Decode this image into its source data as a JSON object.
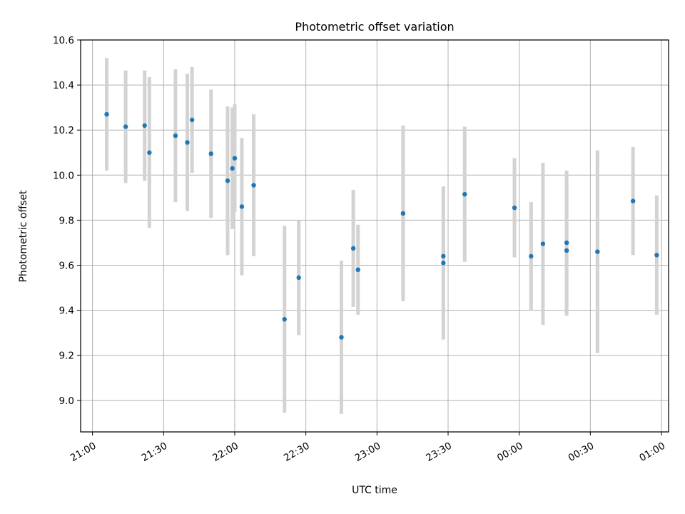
{
  "chart_data": {
    "type": "scatter",
    "title": "Photometric offset variation",
    "xlabel": "UTC time",
    "ylabel": "Photometric offset",
    "xlim": [
      "20:55",
      "01:03"
    ],
    "ylim": [
      8.86,
      10.6
    ],
    "grid": true,
    "x_ticks": [
      "21:00",
      "21:30",
      "22:00",
      "22:30",
      "23:00",
      "23:30",
      "00:00",
      "00:30",
      "01:00"
    ],
    "y_ticks": [
      "9.0",
      "9.2",
      "9.4",
      "9.6",
      "9.8",
      "10.0",
      "10.2",
      "10.4",
      "10.6"
    ],
    "colors": {
      "point": "#1f77b4",
      "errorbar": "#d3d3d3",
      "grid": "#b0b0b0"
    },
    "points": [
      {
        "x": "21:06",
        "y": 10.27,
        "yerr": 0.25
      },
      {
        "x": "21:14",
        "y": 10.215,
        "yerr": 0.25
      },
      {
        "x": "21:22",
        "y": 10.22,
        "yerr": 0.245
      },
      {
        "x": "21:24",
        "y": 10.1,
        "yerr": 0.335
      },
      {
        "x": "21:35",
        "y": 10.175,
        "yerr": 0.295
      },
      {
        "x": "21:40",
        "y": 10.145,
        "yerr": 0.305
      },
      {
        "x": "21:42",
        "y": 10.245,
        "yerr": 0.235
      },
      {
        "x": "21:50",
        "y": 10.095,
        "yerr": 0.285
      },
      {
        "x": "21:57",
        "y": 9.975,
        "yerr": 0.33
      },
      {
        "x": "21:59",
        "y": 10.03,
        "yerr": 0.27
      },
      {
        "x": "22:00",
        "y": 10.075,
        "yerr": 0.24
      },
      {
        "x": "22:03",
        "y": 9.86,
        "yerr": 0.305
      },
      {
        "x": "22:08",
        "y": 9.955,
        "yerr": 0.315
      },
      {
        "x": "22:21",
        "y": 9.36,
        "yerr": 0.415
      },
      {
        "x": "22:27",
        "y": 9.545,
        "yerr": 0.255
      },
      {
        "x": "22:45",
        "y": 9.28,
        "yerr": 0.34
      },
      {
        "x": "22:50",
        "y": 9.675,
        "yerr": 0.26
      },
      {
        "x": "22:52",
        "y": 9.58,
        "yerr": 0.2
      },
      {
        "x": "23:11",
        "y": 9.83,
        "yerr": 0.39
      },
      {
        "x": "23:28",
        "y": 9.61,
        "yerr": 0.34
      },
      {
        "x": "23:28",
        "y": 9.64,
        "yerr": 0.29
      },
      {
        "x": "23:37",
        "y": 9.915,
        "yerr": 0.3
      },
      {
        "x": "23:58",
        "y": 9.855,
        "yerr": 0.22
      },
      {
        "x": "00:05",
        "y": 9.64,
        "yerr": 0.24
      },
      {
        "x": "00:10",
        "y": 9.695,
        "yerr": 0.36
      },
      {
        "x": "00:20",
        "y": 9.665,
        "yerr": 0.29
      },
      {
        "x": "00:20",
        "y": 9.7,
        "yerr": 0.32
      },
      {
        "x": "00:33",
        "y": 9.66,
        "yerr": 0.45
      },
      {
        "x": "00:48",
        "y": 9.885,
        "yerr": 0.24
      },
      {
        "x": "00:58",
        "y": 9.645,
        "yerr": 0.265
      }
    ]
  }
}
